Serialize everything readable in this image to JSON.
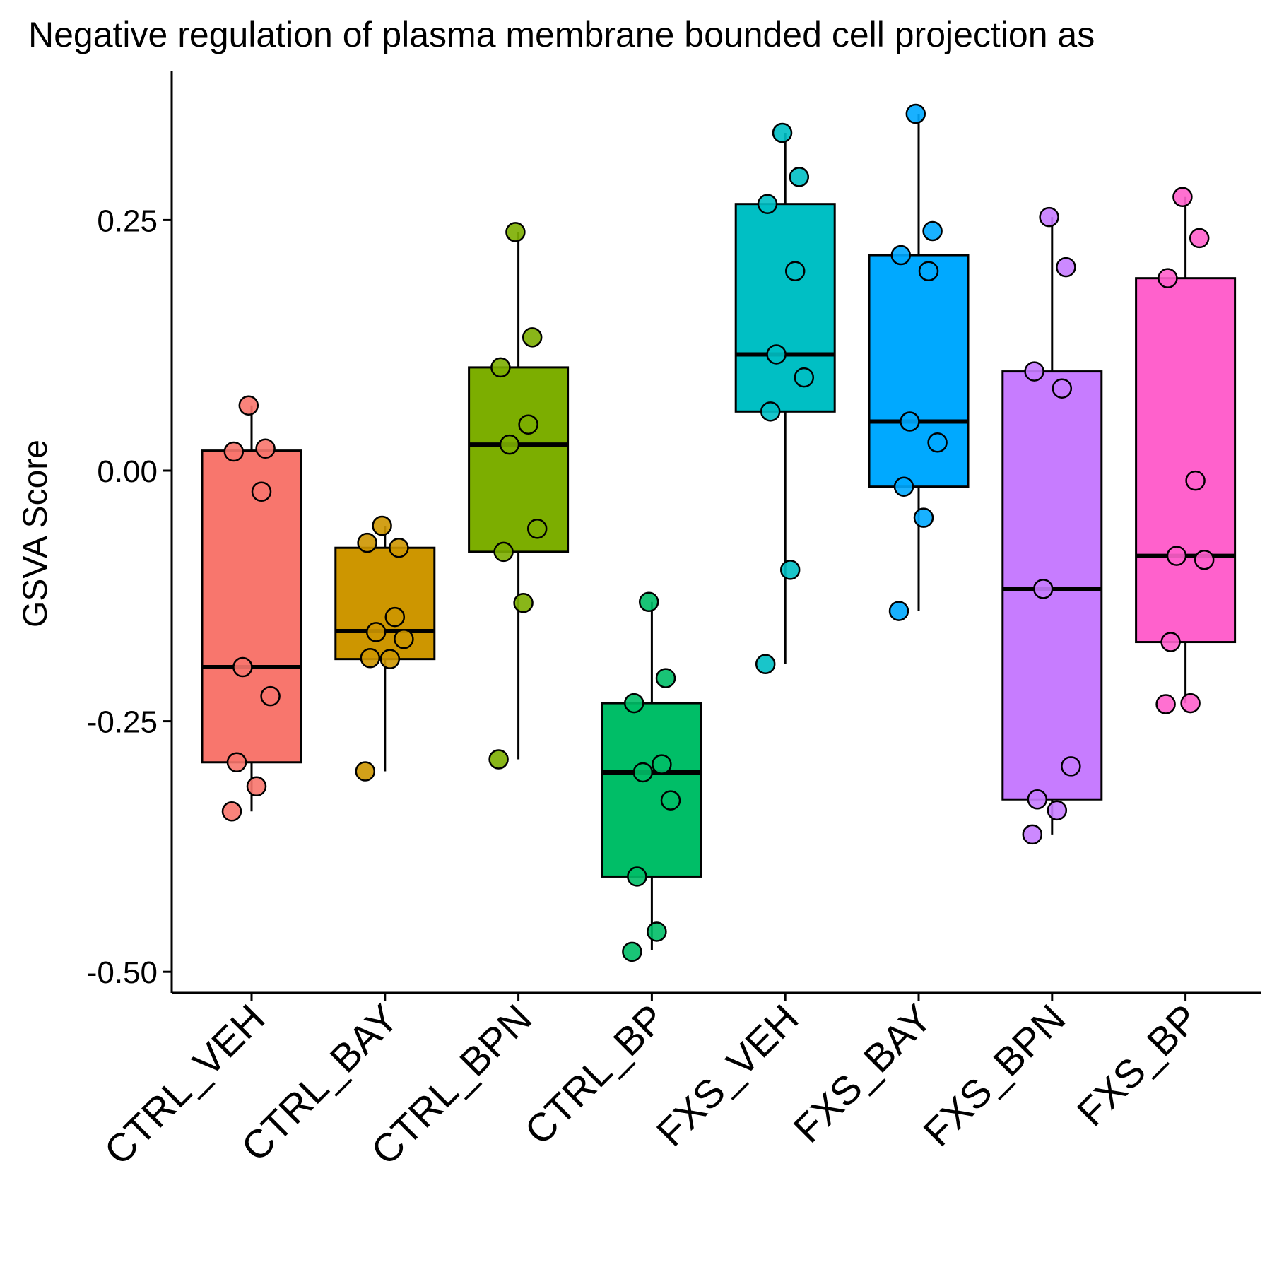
{
  "chart_data": {
    "type": "box",
    "title": "Negative regulation of plasma membrane bounded cell projection as",
    "xlabel": "",
    "ylabel": "GSVA Score",
    "ylim": [
      -0.52,
      0.4
    ],
    "yticks": [
      0.25,
      0.0,
      -0.25,
      -0.5
    ],
    "ytick_labels": [
      "0.25",
      "0.00",
      "-0.25",
      "-0.50"
    ],
    "grid": false,
    "legend": "none",
    "categories": [
      "CTRL_VEH",
      "CTRL_BAY",
      "CTRL_BPN",
      "CTRL_BP",
      "FXS_VEH",
      "FXS_BAY",
      "FXS_BPN",
      "FXS_BP"
    ],
    "series": [
      {
        "color": "#F8766D",
        "box": {
          "whisker_low": -0.34,
          "q1": -0.291,
          "median": -0.196,
          "q3": 0.02,
          "whisker_high": 0.065
        },
        "points": [
          0.065,
          0.022,
          0.019,
          -0.021,
          -0.196,
          -0.225,
          -0.291,
          -0.315,
          -0.34
        ]
      },
      {
        "color": "#CD9600",
        "box": {
          "whisker_low": -0.3,
          "q1": -0.188,
          "median": -0.16,
          "q3": -0.077,
          "whisker_high": -0.055
        },
        "points": [
          -0.055,
          -0.077,
          -0.072,
          -0.146,
          -0.161,
          -0.168,
          -0.187,
          -0.188,
          -0.3
        ]
      },
      {
        "color": "#7CAE00",
        "box": {
          "whisker_low": -0.288,
          "q1": -0.081,
          "median": 0.026,
          "q3": 0.103,
          "whisker_high": 0.238
        },
        "points": [
          0.238,
          0.133,
          0.103,
          0.046,
          0.026,
          -0.058,
          -0.081,
          -0.132,
          -0.288
        ]
      },
      {
        "color": "#00BE67",
        "box": {
          "whisker_low": -0.478,
          "q1": -0.405,
          "median": -0.301,
          "q3": -0.232,
          "whisker_high": -0.131
        },
        "points": [
          -0.131,
          -0.207,
          -0.232,
          -0.293,
          -0.301,
          -0.329,
          -0.405,
          -0.46,
          -0.48
        ]
      },
      {
        "color": "#00BFC4",
        "box": {
          "whisker_low": -0.193,
          "q1": 0.059,
          "median": 0.116,
          "q3": 0.266,
          "whisker_high": 0.337
        },
        "points": [
          0.337,
          0.293,
          0.266,
          0.199,
          0.116,
          0.093,
          0.059,
          -0.099,
          -0.193
        ]
      },
      {
        "color": "#00A9FF",
        "box": {
          "whisker_low": -0.14,
          "q1": -0.016,
          "median": 0.049,
          "q3": 0.215,
          "whisker_high": 0.356
        },
        "points": [
          0.356,
          0.239,
          0.215,
          0.199,
          0.049,
          0.028,
          -0.016,
          -0.047,
          -0.14
        ]
      },
      {
        "color": "#C77CFF",
        "box": {
          "whisker_low": -0.363,
          "q1": -0.328,
          "median": -0.118,
          "q3": 0.099,
          "whisker_high": 0.253
        },
        "points": [
          0.253,
          0.203,
          0.099,
          0.082,
          -0.118,
          -0.295,
          -0.328,
          -0.339,
          -0.363
        ]
      },
      {
        "color": "#FF61CC",
        "box": {
          "whisker_low": -0.232,
          "q1": -0.171,
          "median": -0.085,
          "q3": 0.192,
          "whisker_high": 0.273
        },
        "points": [
          0.273,
          0.232,
          0.192,
          -0.01,
          -0.085,
          -0.089,
          -0.171,
          -0.232,
          -0.233
        ]
      }
    ]
  }
}
